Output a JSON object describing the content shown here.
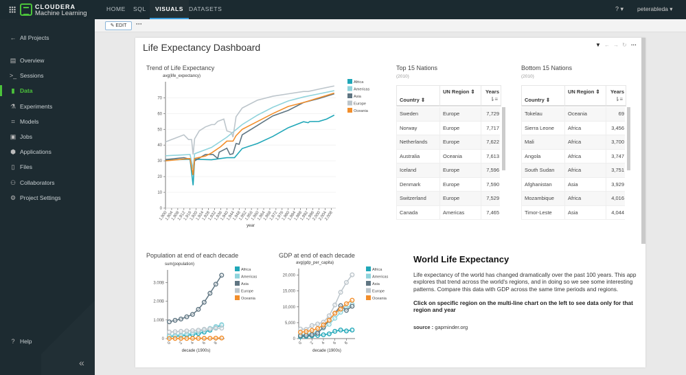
{
  "app": {
    "brand_line1": "CLOUDERA",
    "brand_line2": "Machine Learning",
    "nav": [
      "HOME",
      "SQL",
      "VISUALS",
      "DATASETS"
    ],
    "active_nav": "VISUALS",
    "help": "? ▾",
    "user": "peterableda ▾"
  },
  "sidebar": {
    "back": "All Projects",
    "items": [
      {
        "icon": "overview-icon",
        "glyph": "▤",
        "label": "Overview"
      },
      {
        "icon": "terminal-icon",
        "glyph": ">_",
        "label": "Sessions"
      },
      {
        "icon": "bar-chart-icon",
        "glyph": "▮",
        "label": "Data",
        "active": true
      },
      {
        "icon": "flask-icon",
        "glyph": "⚗",
        "label": "Experiments"
      },
      {
        "icon": "models-icon",
        "glyph": "⌗",
        "label": "Models"
      },
      {
        "icon": "briefcase-icon",
        "glyph": "▣",
        "label": "Jobs"
      },
      {
        "icon": "cube-icon",
        "glyph": "⬢",
        "label": "Applications"
      },
      {
        "icon": "file-icon",
        "glyph": "▯",
        "label": "Files"
      },
      {
        "icon": "users-icon",
        "glyph": "⚇",
        "label": "Collaborators"
      },
      {
        "icon": "gear-icon",
        "glyph": "⚙",
        "label": "Project Settings"
      }
    ],
    "help": "Help",
    "collapse": "«"
  },
  "toolbar": {
    "edit": "✎ EDIT",
    "more": "···"
  },
  "dashboard": {
    "title": "Life Expectancy Dashboard"
  },
  "colors": {
    "Africa": "#20a7b8",
    "Americas": "#8fd3dc",
    "Asia": "#5f7582",
    "Europe": "#bcc5cb",
    "Oceania": "#f28e2b"
  },
  "chart_data": [
    {
      "type": "line",
      "title": "Trend of Life Expectancy",
      "ylabel": "avg(life_expectancy)",
      "xlabel": "year",
      "ylim": [
        0,
        78
      ],
      "yticks": [
        0,
        10,
        20,
        30,
        40,
        50,
        60,
        70
      ],
      "xlim": [
        1900,
        2011
      ],
      "xticks": [
        "1,900",
        "1,904",
        "1,908",
        "1,912",
        "1,916",
        "1,920",
        "1,924",
        "1,928",
        "1,932",
        "1,936",
        "1,940",
        "1,944",
        "1,948",
        "1,952",
        "1,956",
        "1,960",
        "1,964",
        "1,968",
        "1,972",
        "1,976",
        "1,980",
        "1,984",
        "1,988",
        "1,992",
        "1,996",
        "2,000",
        "2,004",
        "2,008"
      ],
      "legend": "top-right",
      "series": [
        {
          "name": "Africa",
          "points": [
            [
              1900,
              30.5
            ],
            [
              1916,
              31
            ],
            [
              1918,
              14.5
            ],
            [
              1919,
              31
            ],
            [
              1930,
              30.7
            ],
            [
              1940,
              32
            ],
            [
              1945,
              32
            ],
            [
              1950,
              37.8
            ],
            [
              1960,
              41
            ],
            [
              1970,
              45.5
            ],
            [
              1980,
              51
            ],
            [
              1990,
              54.8
            ],
            [
              1993,
              54.2
            ],
            [
              1994,
              54.9
            ],
            [
              2000,
              55
            ],
            [
              2005,
              56.5
            ],
            [
              2010,
              59
            ]
          ]
        },
        {
          "name": "Americas",
          "points": [
            [
              1900,
              33.2
            ],
            [
              1916,
              34
            ],
            [
              1918,
              25
            ],
            [
              1919,
              34.5
            ],
            [
              1930,
              38.5
            ],
            [
              1940,
              45
            ],
            [
              1950,
              53
            ],
            [
              1960,
              59
            ],
            [
              1970,
              64
            ],
            [
              1980,
              68
            ],
            [
              1990,
              70.5
            ],
            [
              2000,
              72.5
            ],
            [
              2010,
              74.5
            ]
          ]
        },
        {
          "name": "Asia",
          "points": [
            [
              1900,
              30.8
            ],
            [
              1912,
              32
            ],
            [
              1916,
              31
            ],
            [
              1918,
              21
            ],
            [
              1919,
              30
            ],
            [
              1926,
              34
            ],
            [
              1931,
              34
            ],
            [
              1934,
              31.5
            ],
            [
              1935,
              35.5
            ],
            [
              1940,
              38
            ],
            [
              1942,
              34
            ],
            [
              1944,
              34.5
            ],
            [
              1946,
              41
            ],
            [
              1948,
              40.5
            ],
            [
              1950,
              46.5
            ],
            [
              1960,
              52.5
            ],
            [
              1970,
              58.5
            ],
            [
              1980,
              62
            ],
            [
              1990,
              67
            ],
            [
              2000,
              69.5
            ],
            [
              2010,
              72.5
            ]
          ]
        },
        {
          "name": "Europe",
          "points": [
            [
              1900,
              42
            ],
            [
              1904,
              43.5
            ],
            [
              1912,
              46.5
            ],
            [
              1915,
              43.5
            ],
            [
              1917,
              43.5
            ],
            [
              1918,
              34
            ],
            [
              1919,
              44
            ],
            [
              1922,
              49
            ],
            [
              1926,
              51.5
            ],
            [
              1930,
              53
            ],
            [
              1932,
              53
            ],
            [
              1934,
              55
            ],
            [
              1938,
              56.5
            ],
            [
              1940,
              49
            ],
            [
              1943,
              48
            ],
            [
              1944,
              45
            ],
            [
              1946,
              58
            ],
            [
              1950,
              63.5
            ],
            [
              1960,
              68.5
            ],
            [
              1970,
              71
            ],
            [
              1980,
              72.5
            ],
            [
              1990,
              74
            ],
            [
              1993,
              74
            ],
            [
              2000,
              75.5
            ],
            [
              2010,
              77.5
            ]
          ]
        },
        {
          "name": "Oceania",
          "points": [
            [
              1900,
              30
            ],
            [
              1916,
              31.5
            ],
            [
              1918,
              21
            ],
            [
              1919,
              31.5
            ],
            [
              1926,
              33
            ],
            [
              1930,
              35
            ],
            [
              1936,
              39
            ],
            [
              1940,
              42.5
            ],
            [
              1944,
              42.5
            ],
            [
              1946,
              46
            ],
            [
              1950,
              50
            ],
            [
              1960,
              55
            ],
            [
              1970,
              60
            ],
            [
              1980,
              64.5
            ],
            [
              1990,
              67
            ],
            [
              2000,
              70
            ],
            [
              2010,
              73
            ]
          ]
        }
      ]
    },
    {
      "type": "line",
      "title": "Population at end of each decade",
      "ylabel": "sum(population)",
      "xlabel": "decade (1900s)",
      "ylim": [
        0,
        3.5
      ],
      "yticks": [
        [
          0,
          "0"
        ],
        [
          1,
          "1.00B"
        ],
        [
          2,
          "2.00B"
        ],
        [
          3,
          "3.00B"
        ]
      ],
      "xticks": [
        0,
        2,
        4,
        6,
        8
      ],
      "x": [
        0,
        1,
        2,
        3,
        4,
        5,
        6,
        7,
        8,
        9
      ],
      "legend": "top-right",
      "series": [
        {
          "name": "Africa",
          "values": [
            0.12,
            0.13,
            0.15,
            0.18,
            0.22,
            0.27,
            0.35,
            0.45,
            0.6,
            0.72
          ]
        },
        {
          "name": "Americas",
          "values": [
            0.15,
            0.18,
            0.2,
            0.25,
            0.3,
            0.38,
            0.45,
            0.55,
            0.65,
            0.75
          ]
        },
        {
          "name": "Asia",
          "values": [
            0.9,
            0.98,
            1.05,
            1.17,
            1.3,
            1.57,
            1.95,
            2.43,
            2.92,
            3.4
          ]
        },
        {
          "name": "Europe",
          "values": [
            0.35,
            0.37,
            0.39,
            0.41,
            0.43,
            0.45,
            0.5,
            0.52,
            0.55,
            0.56
          ]
        },
        {
          "name": "Oceania",
          "values": [
            0.006,
            0.007,
            0.009,
            0.01,
            0.012,
            0.014,
            0.017,
            0.02,
            0.025,
            0.03
          ]
        }
      ]
    },
    {
      "type": "line",
      "title": "GDP at end of each decade",
      "ylabel": "avg(gdp_per_capita)",
      "xlabel": "decade (1900s)",
      "ylim": [
        0,
        21000
      ],
      "yticks": [
        [
          0,
          "0"
        ],
        [
          5000,
          "5,000"
        ],
        [
          10000,
          "10,000"
        ],
        [
          15000,
          "15,000"
        ],
        [
          20000,
          "20,000"
        ]
      ],
      "xticks": [
        0,
        2,
        4,
        6,
        8
      ],
      "x": [
        0,
        1,
        2,
        3,
        4,
        5,
        6,
        7,
        8,
        9
      ],
      "legend": "top-right",
      "series": [
        {
          "name": "Africa",
          "values": [
            600,
            700,
            900,
            1000,
            1200,
            1500,
            2300,
            2700,
            2400,
            2700
          ]
        },
        {
          "name": "Americas",
          "values": [
            1200,
            1300,
            1600,
            2200,
            3300,
            4500,
            6400,
            8300,
            9600,
            10800
          ]
        },
        {
          "name": "Asia",
          "values": [
            900,
            1000,
            1200,
            1700,
            3600,
            5800,
            8000,
            10400,
            8900,
            10200
          ]
        },
        {
          "name": "Europe",
          "values": [
            3000,
            2900,
            4100,
            4600,
            5200,
            7200,
            10600,
            14600,
            17700,
            20100
          ]
        },
        {
          "name": "Oceania",
          "values": [
            2000,
            2200,
            2600,
            3200,
            4300,
            5800,
            8000,
            9300,
            11000,
            12100
          ]
        }
      ]
    }
  ],
  "top_table": {
    "title": "Top 15 Nations",
    "subtitle": "(2010)",
    "headers": [
      "Country ⇕",
      "UN Region ⇕",
      "Years"
    ],
    "rows": [
      [
        "Sweden",
        "Europe",
        "7,729"
      ],
      [
        "Norway",
        "Europe",
        "7,717"
      ],
      [
        "Netherlands",
        "Europe",
        "7,622"
      ],
      [
        "Australia",
        "Oceania",
        "7,613"
      ],
      [
        "Iceland",
        "Europe",
        "7,596"
      ],
      [
        "Denmark",
        "Europe",
        "7,590"
      ],
      [
        "Switzerland",
        "Europe",
        "7,529"
      ],
      [
        "Canada",
        "Americas",
        "7,465"
      ]
    ]
  },
  "bottom_table": {
    "title": "Bottom 15 Nations",
    "subtitle": "(2010)",
    "headers": [
      "Country ⇕",
      "UN Region ⇕",
      "Years"
    ],
    "rows": [
      [
        "Tokelau",
        "Oceania",
        "69"
      ],
      [
        "Sierra Leone",
        "Africa",
        "3,456"
      ],
      [
        "Mali",
        "Africa",
        "3,700"
      ],
      [
        "Angola",
        "Africa",
        "3,747"
      ],
      [
        "South Sudan",
        "Africa",
        "3,751"
      ],
      [
        "Afghanistan",
        "Asia",
        "3,929"
      ],
      [
        "Mozambique",
        "Africa",
        "4,016"
      ],
      [
        "Timor-Leste",
        "Asia",
        "4,044"
      ]
    ]
  },
  "textbox": {
    "title": "World Life Expectancy",
    "body": "Life expectancy of the world has changed dramatically over the past 100 years. This app explores that trend across the world's regions, and in doing so we see some interesting patterns. Compare this data with GDP across the same time periods and regions.",
    "instruction": "Click on specific region on the multi-line chart on the left to see data only for that region and year",
    "source_label": "source :",
    "source": "gapminder.org"
  }
}
